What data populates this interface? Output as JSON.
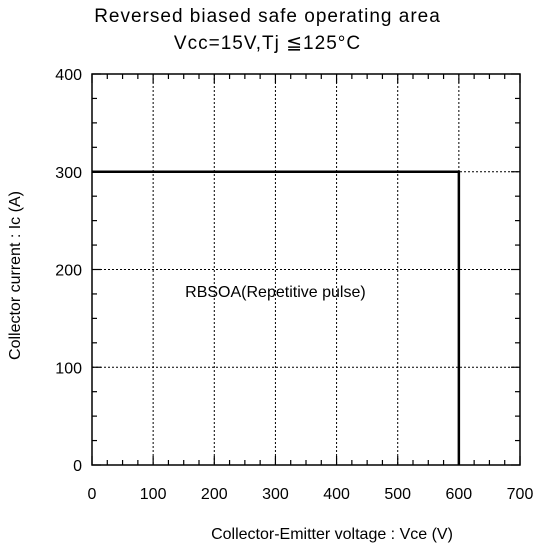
{
  "chart_data": {
    "type": "line",
    "title": "Reversed biased safe operating area",
    "subtitle": "Vcc=15V,Tj ≦125°C",
    "xlabel": "Collector-Emitter voltage : Vce (V)",
    "ylabel": "Collector current : Ic (A)",
    "xlim": [
      0,
      700
    ],
    "ylim": [
      0,
      400
    ],
    "x_ticks": [
      0,
      100,
      200,
      300,
      400,
      500,
      600,
      700
    ],
    "y_ticks": [
      0,
      100,
      200,
      300,
      400
    ],
    "grid": true,
    "series": [
      {
        "x": [
          0,
          600,
          600
        ],
        "y": [
          300,
          300,
          0
        ]
      }
    ],
    "annotations": [
      {
        "text": "RBSOA(Repetitive pulse)",
        "x": 300,
        "y": 172
      }
    ]
  }
}
